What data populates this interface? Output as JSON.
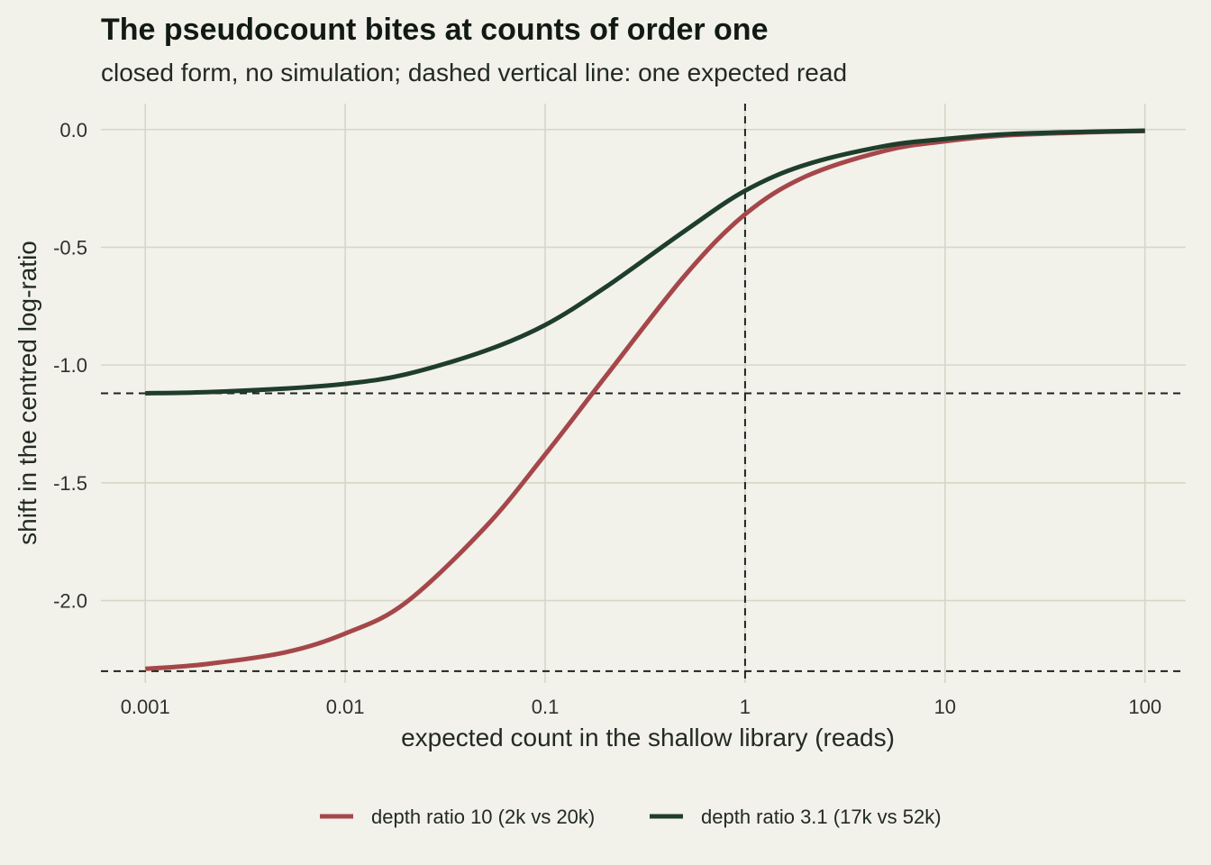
{
  "chart_data": {
    "type": "line",
    "title": "The pseudocount bites at counts of order one",
    "subtitle": "closed form, no simulation; dashed vertical line: one expected read",
    "xlabel": "expected count in the shallow library (reads)",
    "ylabel": "shift in the centred log-ratio",
    "x_scale": "log10",
    "xlim": [
      0.0006,
      160
    ],
    "ylim": [
      -2.35,
      0.11
    ],
    "x_ticks": [
      0.001,
      0.01,
      0.1,
      1,
      10,
      100
    ],
    "x_tick_labels": [
      "0.001",
      "0.01",
      "0.1",
      "1",
      "10",
      "100"
    ],
    "y_ticks": [
      0.0,
      -0.5,
      -1.0,
      -1.5,
      -2.0
    ],
    "y_tick_labels": [
      "0.0",
      "-0.5",
      "-1.0",
      "-1.5",
      "-2.0"
    ],
    "grid": true,
    "legend_position": "bottom",
    "reference_lines": {
      "vertical_x": [
        1
      ],
      "horizontal_y": [
        -1.12,
        -2.3
      ]
    },
    "series": [
      {
        "name": "depth ratio 10 (2k vs 20k)",
        "color": "#a5474a",
        "x": [
          0.001,
          0.002,
          0.005,
          0.01,
          0.02,
          0.05,
          0.1,
          0.2,
          0.5,
          1,
          2,
          5,
          10,
          20,
          50,
          100
        ],
        "y": [
          -2.29,
          -2.27,
          -2.22,
          -2.14,
          -2.01,
          -1.69,
          -1.38,
          -1.05,
          -0.62,
          -0.36,
          -0.2,
          -0.09,
          -0.05,
          -0.025,
          -0.012,
          -0.006
        ]
      },
      {
        "name": "depth ratio 3.1 (17k vs 52k)",
        "color": "#1f3d2b",
        "x": [
          0.001,
          0.002,
          0.005,
          0.01,
          0.02,
          0.05,
          0.1,
          0.2,
          0.5,
          1,
          2,
          5,
          10,
          20,
          50,
          100
        ],
        "y": [
          -1.12,
          -1.115,
          -1.1,
          -1.08,
          -1.04,
          -0.94,
          -0.83,
          -0.67,
          -0.43,
          -0.26,
          -0.15,
          -0.07,
          -0.04,
          -0.02,
          -0.01,
          -0.005
        ]
      }
    ]
  }
}
